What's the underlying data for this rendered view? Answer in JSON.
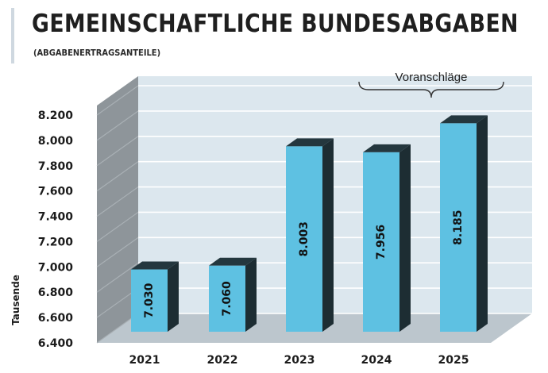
{
  "header": {
    "title": "GEMEINSCHAFTLICHE BUNDESABGABEN",
    "subtitle": "(ABGABENERTRAGSANTEILE)"
  },
  "colors": {
    "bar_front": "#5ec1e2",
    "bar_side": "#1d2d33",
    "bar_top": "#24373e",
    "back_wall": "#dce7ee",
    "side_wall": "#8e959a",
    "floor": "#bcc6cd",
    "gridline": "#ffffff",
    "text": "#1c1c1c"
  },
  "chart_data": {
    "type": "bar",
    "title": "GEMEINSCHAFTLICHE BUNDESABGABEN",
    "subtitle": "(ABGABENERTRAGSANTEILE)",
    "categories": [
      "2021",
      "2022",
      "2023",
      "2024",
      "2025"
    ],
    "values": [
      7030,
      7060,
      8003,
      7956,
      8185
    ],
    "value_labels": [
      "7.030",
      "7.060",
      "8.003",
      "7.956",
      "8.185"
    ],
    "ylabel": "Tausende",
    "xlabel": "",
    "ylim": [
      6400,
      8200
    ],
    "yticks": [
      6400,
      6600,
      6800,
      7000,
      7200,
      7400,
      7600,
      7800,
      8000,
      8200
    ],
    "ytick_labels": [
      "6.400",
      "6.600",
      "6.800",
      "7.000",
      "7.200",
      "7.400",
      "7.600",
      "7.800",
      "8.000",
      "8.200"
    ],
    "annotation": "Voranschläge",
    "grid": true,
    "style": "3d"
  }
}
